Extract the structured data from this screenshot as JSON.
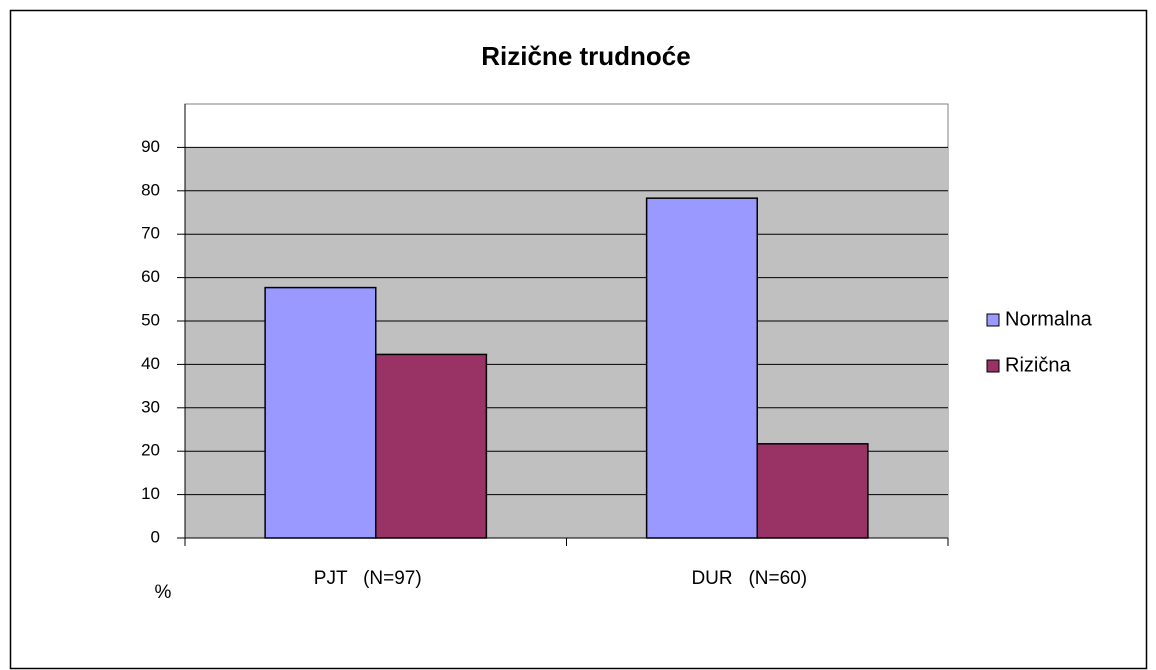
{
  "chart_data": {
    "type": "bar",
    "title": "Rizične trudnoće",
    "y_label": "%",
    "categories": [
      "PJT   (N=97)",
      "DUR   (N=60)"
    ],
    "series": [
      {
        "name": "Normalna",
        "color": "#9999ff",
        "values": [
          57.7,
          78.3
        ]
      },
      {
        "name": "Rizična",
        "color": "#993366",
        "values": [
          42.3,
          21.7
        ]
      }
    ],
    "ylim": [
      0,
      100
    ],
    "yticks": [
      0,
      10,
      20,
      30,
      40,
      50,
      60,
      70,
      80,
      90
    ],
    "grid": true,
    "legend": "right",
    "plot_background": "#c0c0c0"
  }
}
